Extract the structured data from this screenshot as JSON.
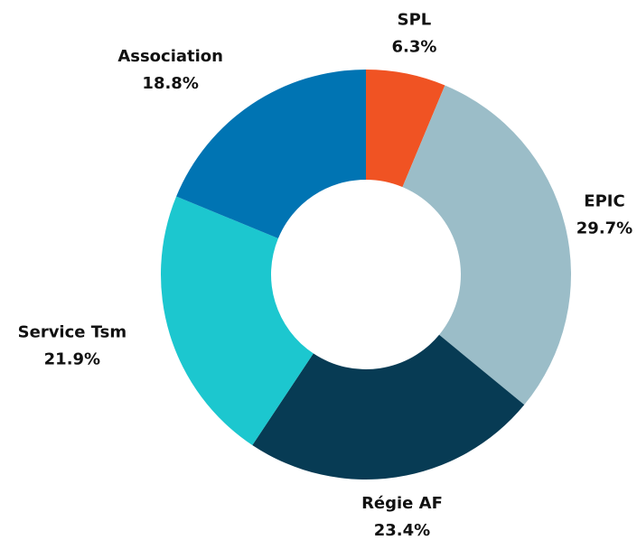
{
  "chart_data": {
    "type": "donut",
    "categories": [
      "SPL",
      "EPIC",
      "Régie AF",
      "Service Tsm",
      "Association"
    ],
    "values": [
      6.3,
      29.7,
      23.4,
      21.9,
      18.8
    ],
    "value_labels": [
      "6.3%",
      "29.7%",
      "23.4%",
      "21.9%",
      "18.8%"
    ],
    "colors": [
      "#f05323",
      "#9bbdc8",
      "#073b54",
      "#1cc7cf",
      "#0074b3"
    ]
  }
}
